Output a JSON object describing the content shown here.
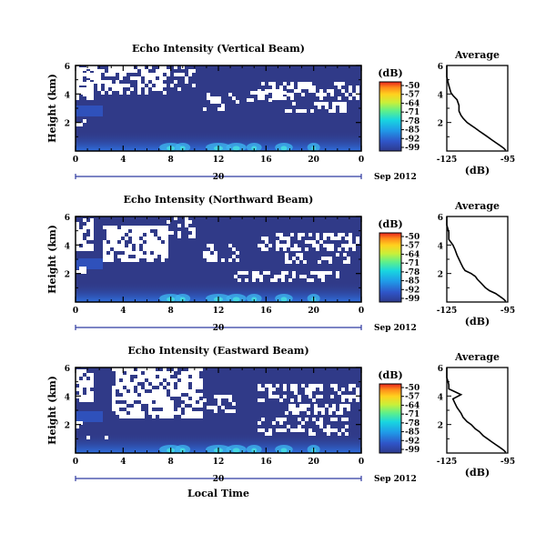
{
  "chart_data": [
    {
      "type": "heatmap",
      "title": "Echo Intensity (Vertical Beam)",
      "ylabel": "Height (km)",
      "x_ticks": [
        "0",
        "4",
        "8",
        "12",
        "16",
        "20",
        "0"
      ],
      "y_ticks": [
        "6",
        "4",
        "2"
      ],
      "date_day": "20",
      "date_label": "Sep 2012",
      "xlim_hours": [
        0,
        24
      ],
      "ylim_km": [
        0,
        6
      ],
      "colorbar": {
        "unit": "(dB)",
        "ticks": [
          "-50",
          "-57",
          "-64",
          "-71",
          "-78",
          "-85",
          "-92",
          "-99"
        ]
      },
      "profile": {
        "title": "Average",
        "xlabel": "(dB)",
        "x_ticks": [
          "-125",
          "-95"
        ],
        "y_ticks": [
          "6",
          "4",
          "2"
        ],
        "xlim": [
          -125,
          -95
        ],
        "ylim": [
          0,
          6
        ],
        "points": [
          [
            -125,
            6.0
          ],
          [
            -125,
            5.2
          ],
          [
            -124,
            4.6
          ],
          [
            -123,
            4.1
          ],
          [
            -122,
            3.9
          ],
          [
            -120,
            3.6
          ],
          [
            -119,
            3.2
          ],
          [
            -119,
            2.8
          ],
          [
            -118,
            2.5
          ],
          [
            -117,
            2.3
          ],
          [
            -115,
            2.0
          ],
          [
            -113,
            1.8
          ],
          [
            -111,
            1.6
          ],
          [
            -109,
            1.4
          ],
          [
            -107,
            1.2
          ],
          [
            -105,
            1.0
          ],
          [
            -103,
            0.8
          ],
          [
            -101,
            0.6
          ],
          [
            -99,
            0.4
          ],
          [
            -97,
            0.2
          ],
          [
            -96,
            0.05
          ]
        ]
      }
    },
    {
      "type": "heatmap",
      "title": "Echo Intensity (Northward Beam)",
      "ylabel": "Height (km)",
      "x_ticks": [
        "0",
        "4",
        "8",
        "12",
        "16",
        "20",
        "0"
      ],
      "y_ticks": [
        "6",
        "4",
        "2"
      ],
      "date_day": "20",
      "date_label": "Sep 2012",
      "xlim_hours": [
        0,
        24
      ],
      "ylim_km": [
        0,
        6
      ],
      "colorbar": {
        "unit": "(dB)",
        "ticks": [
          "-50",
          "-57",
          "-64",
          "-71",
          "-78",
          "-85",
          "-92",
          "-99"
        ]
      },
      "profile": {
        "title": "Average",
        "xlabel": "(dB)",
        "x_ticks": [
          "-125",
          "-95"
        ],
        "y_ticks": [
          "6",
          "4",
          "2"
        ],
        "xlim": [
          -125,
          -95
        ],
        "ylim": [
          0,
          6
        ],
        "points": [
          [
            -125,
            6.0
          ],
          [
            -125,
            5.4
          ],
          [
            -124,
            4.9
          ],
          [
            -124,
            4.4
          ],
          [
            -122,
            4.0
          ],
          [
            -121,
            3.7
          ],
          [
            -120,
            3.3
          ],
          [
            -119,
            3.0
          ],
          [
            -118,
            2.7
          ],
          [
            -117,
            2.4
          ],
          [
            -116,
            2.2
          ],
          [
            -113,
            2.0
          ],
          [
            -111,
            1.8
          ],
          [
            -110,
            1.6
          ],
          [
            -108,
            1.3
          ],
          [
            -106,
            1.0
          ],
          [
            -104,
            0.8
          ],
          [
            -101,
            0.6
          ],
          [
            -99,
            0.4
          ],
          [
            -97,
            0.2
          ],
          [
            -96,
            0.05
          ]
        ]
      }
    },
    {
      "type": "heatmap",
      "title": "Echo Intensity (Eastward Beam)",
      "ylabel": "Height (km)",
      "x_ticks": [
        "0",
        "4",
        "8",
        "12",
        "16",
        "20",
        "0"
      ],
      "y_ticks": [
        "6",
        "4",
        "2"
      ],
      "date_day": "20",
      "date_label": "Sep 2012",
      "xlabel": "Local Time",
      "xlim_hours": [
        0,
        24
      ],
      "ylim_km": [
        0,
        6
      ],
      "colorbar": {
        "unit": "(dB)",
        "ticks": [
          "-50",
          "-57",
          "-64",
          "-71",
          "-78",
          "-85",
          "-92",
          "-99"
        ]
      },
      "profile": {
        "title": "Average",
        "xlabel": "(dB)",
        "x_ticks": [
          "-125",
          "-95"
        ],
        "y_ticks": [
          "6",
          "4",
          "2"
        ],
        "xlim": [
          -125,
          -95
        ],
        "ylim": [
          0,
          6
        ],
        "points": [
          [
            -125,
            6.0
          ],
          [
            -125,
            5.3
          ],
          [
            -124,
            4.8
          ],
          [
            -124,
            4.5
          ],
          [
            -121,
            4.3
          ],
          [
            -118,
            4.1
          ],
          [
            -122,
            3.8
          ],
          [
            -121,
            3.5
          ],
          [
            -120,
            3.2
          ],
          [
            -118,
            2.8
          ],
          [
            -117,
            2.5
          ],
          [
            -115,
            2.2
          ],
          [
            -113,
            2.0
          ],
          [
            -111,
            1.7
          ],
          [
            -109,
            1.5
          ],
          [
            -107,
            1.2
          ],
          [
            -105,
            1.0
          ],
          [
            -103,
            0.8
          ],
          [
            -101,
            0.6
          ],
          [
            -99,
            0.4
          ],
          [
            -97,
            0.2
          ],
          [
            -96,
            0.05
          ]
        ]
      }
    }
  ]
}
